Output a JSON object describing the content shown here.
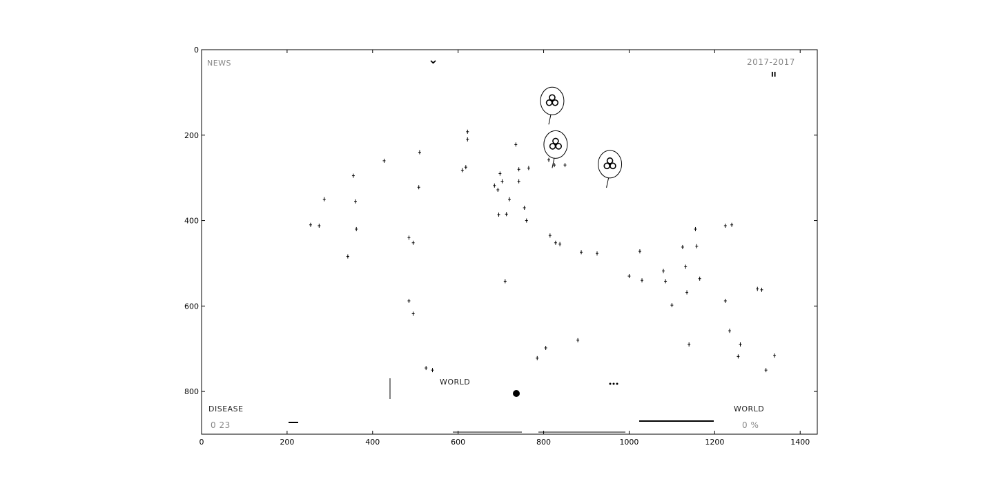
{
  "chart_data": {
    "type": "scatter",
    "title": "",
    "xlabel": "",
    "ylabel": "",
    "xlim": [
      0,
      1440
    ],
    "ylim": [
      900,
      0
    ],
    "grid": false,
    "x_ticks": [
      0,
      200,
      400,
      600,
      800,
      1000,
      1200,
      1400
    ],
    "y_ticks": [
      0,
      200,
      400,
      600,
      800
    ],
    "image_text": {
      "news": "NEWS",
      "date": "2017-2017",
      "pause": "II",
      "world_top": "WORLD",
      "disease_label": "DISEASE",
      "disease_value": "0  23",
      "world_label": "WORLD",
      "world_value": "0 %",
      "chevron": "⌄"
    },
    "biohazard_markers": [
      {
        "x": 820,
        "y": 120
      },
      {
        "x": 828,
        "y": 222
      },
      {
        "x": 955,
        "y": 268
      }
    ],
    "points": [
      [
        255,
        410
      ],
      [
        275,
        412
      ],
      [
        287,
        350
      ],
      [
        355,
        295
      ],
      [
        360,
        355
      ],
      [
        362,
        420
      ],
      [
        342,
        484
      ],
      [
        427,
        260
      ],
      [
        510,
        240
      ],
      [
        508,
        322
      ],
      [
        485,
        440
      ],
      [
        495,
        452
      ],
      [
        485,
        588
      ],
      [
        495,
        618
      ],
      [
        622,
        192
      ],
      [
        622,
        210
      ],
      [
        610,
        282
      ],
      [
        618,
        275
      ],
      [
        685,
        318
      ],
      [
        693,
        328
      ],
      [
        698,
        290
      ],
      [
        703,
        308
      ],
      [
        695,
        386
      ],
      [
        713,
        385
      ],
      [
        720,
        350
      ],
      [
        735,
        222
      ],
      [
        742,
        308
      ],
      [
        742,
        280
      ],
      [
        755,
        370
      ],
      [
        765,
        277
      ],
      [
        760,
        400
      ],
      [
        812,
        258
      ],
      [
        825,
        270
      ],
      [
        850,
        270
      ],
      [
        815,
        435
      ],
      [
        828,
        452
      ],
      [
        838,
        455
      ],
      [
        888,
        474
      ],
      [
        925,
        477
      ],
      [
        1000,
        530
      ],
      [
        1030,
        540
      ],
      [
        1025,
        472
      ],
      [
        1080,
        518
      ],
      [
        1085,
        542
      ],
      [
        1100,
        598
      ],
      [
        1125,
        462
      ],
      [
        1132,
        508
      ],
      [
        1135,
        568
      ],
      [
        1155,
        420
      ],
      [
        1158,
        460
      ],
      [
        1165,
        536
      ],
      [
        1140,
        690
      ],
      [
        1225,
        412
      ],
      [
        1240,
        410
      ],
      [
        1225,
        588
      ],
      [
        1235,
        658
      ],
      [
        1260,
        690
      ],
      [
        1255,
        718
      ],
      [
        1300,
        560
      ],
      [
        1310,
        562
      ],
      [
        1320,
        750
      ],
      [
        1340,
        716
      ],
      [
        880,
        680
      ],
      [
        805,
        698
      ],
      [
        785,
        722
      ],
      [
        710,
        542
      ],
      [
        525,
        745
      ],
      [
        540,
        750
      ]
    ]
  }
}
